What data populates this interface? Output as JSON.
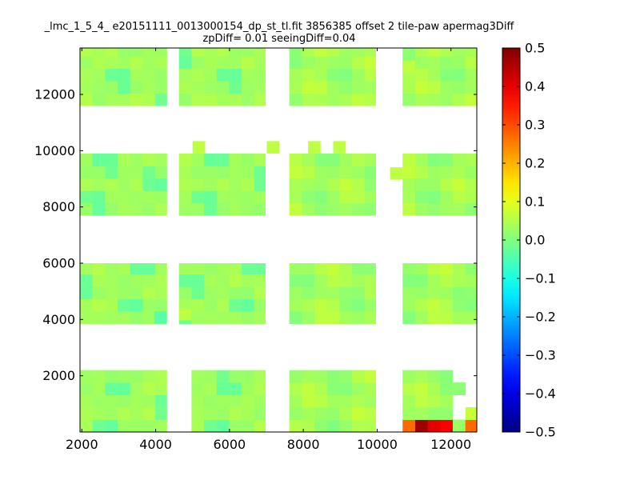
{
  "chart_data": {
    "type": "heatmap",
    "title_line1": "_lmc_1_5_4_ e20151111_0013000154_dp_st_tl.fit 3856385 offset 2 tile-paw apermag3Diff",
    "title_line2": "zpDiff= 0.01 seeingDiff=0.04",
    "xlabel": "",
    "ylabel": "",
    "xlim": [
      1950,
      12700
    ],
    "ylim": [
      0,
      13650
    ],
    "x_ticks": [
      2000,
      4000,
      6000,
      8000,
      10000,
      12000
    ],
    "y_ticks": [
      2000,
      4000,
      6000,
      8000,
      10000,
      12000
    ],
    "colorbar": {
      "range": [
        -0.5,
        0.5
      ],
      "colormap": "jet",
      "ticks": [
        "0.5",
        "0.4",
        "0.3",
        "0.2",
        "0.1",
        "0.0",
        "−0.1",
        "−0.2",
        "−0.3",
        "−0.4",
        "−0.5"
      ]
    },
    "cell_size": [
      340,
      440
    ],
    "detector_columns": [
      [
        1950,
        4300
      ],
      [
        4630,
        6970
      ],
      [
        7620,
        9960
      ],
      [
        10690,
        12700
      ]
    ],
    "detector_rows": [
      [
        0,
        2200
      ],
      [
        3850,
        6000
      ],
      [
        7700,
        9900
      ],
      [
        11600,
        13650
      ]
    ],
    "special_cells": [
      {
        "x": 8810,
        "y": 440,
        "value": -0.12
      },
      {
        "x": 9150,
        "y": 440,
        "value": -0.14
      },
      {
        "x": 9490,
        "y": 440,
        "value": -0.13
      },
      {
        "x": 8810,
        "y": 0,
        "value": -0.15
      },
      {
        "x": 9150,
        "y": 0,
        "value": -0.15
      },
      {
        "x": 9490,
        "y": 0,
        "value": -0.13
      },
      {
        "x": 8470,
        "y": 0,
        "value": -0.07
      },
      {
        "x": 10690,
        "y": 0,
        "value": 0.27
      },
      {
        "x": 11030,
        "y": 0,
        "value": 0.47
      },
      {
        "x": 11370,
        "y": 0,
        "value": 0.4
      },
      {
        "x": 11710,
        "y": 0,
        "value": 0.38
      },
      {
        "x": 12390,
        "y": 0,
        "value": 0.27
      },
      {
        "x": 9830,
        "y": 1320,
        "value": 0.07
      },
      {
        "x": 9830,
        "y": 880,
        "value": 0.05
      }
    ]
  }
}
